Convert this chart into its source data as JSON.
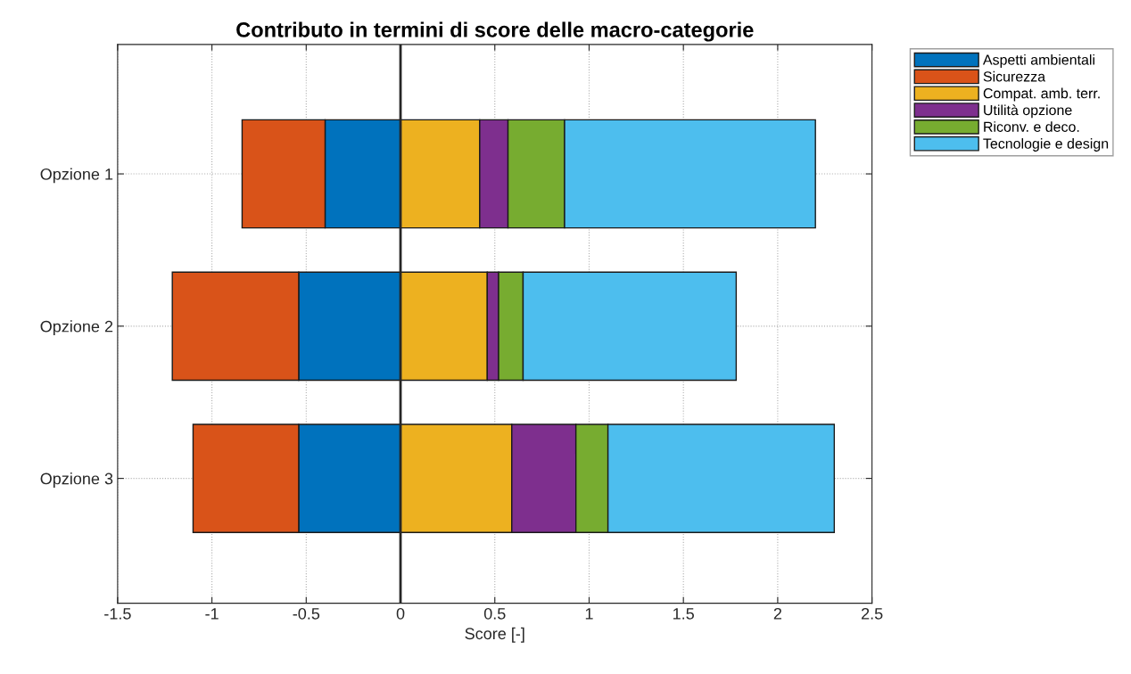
{
  "chart_data": {
    "type": "bar",
    "orientation": "horizontal",
    "stacked": true,
    "title": "Contributo in termini di score delle macro-categorie",
    "xlabel": "Score [-]",
    "categories": [
      "Opzione 1",
      "Opzione 2",
      "Opzione 3"
    ],
    "series": [
      {
        "name": "Aspetti ambientali",
        "color": "#0072bd",
        "values": [
          -0.4,
          -0.54,
          -0.54
        ]
      },
      {
        "name": "Sicurezza",
        "color": "#d95319",
        "values": [
          -0.44,
          -0.67,
          -0.56
        ]
      },
      {
        "name": "Compat. amb. terr.",
        "color": "#edb120",
        "values": [
          0.42,
          0.46,
          0.59
        ]
      },
      {
        "name": "Utilità opzione",
        "color": "#7e2f8e",
        "values": [
          0.15,
          0.06,
          0.34
        ]
      },
      {
        "name": "Riconv. e deco.",
        "color": "#77ac30",
        "values": [
          0.3,
          0.13,
          0.17
        ]
      },
      {
        "name": "Tecnologie e design",
        "color": "#4dbeee",
        "values": [
          1.33,
          1.13,
          1.2
        ]
      }
    ],
    "xlim": [
      -1.5,
      2.5
    ],
    "xticks": [
      -1.5,
      -1,
      -0.5,
      0,
      0.5,
      1,
      1.5,
      2,
      2.5
    ],
    "ref_lines": [
      {
        "axis": "x",
        "value": 0,
        "color": "#262626"
      }
    ],
    "grid": true,
    "legend": "top right"
  }
}
